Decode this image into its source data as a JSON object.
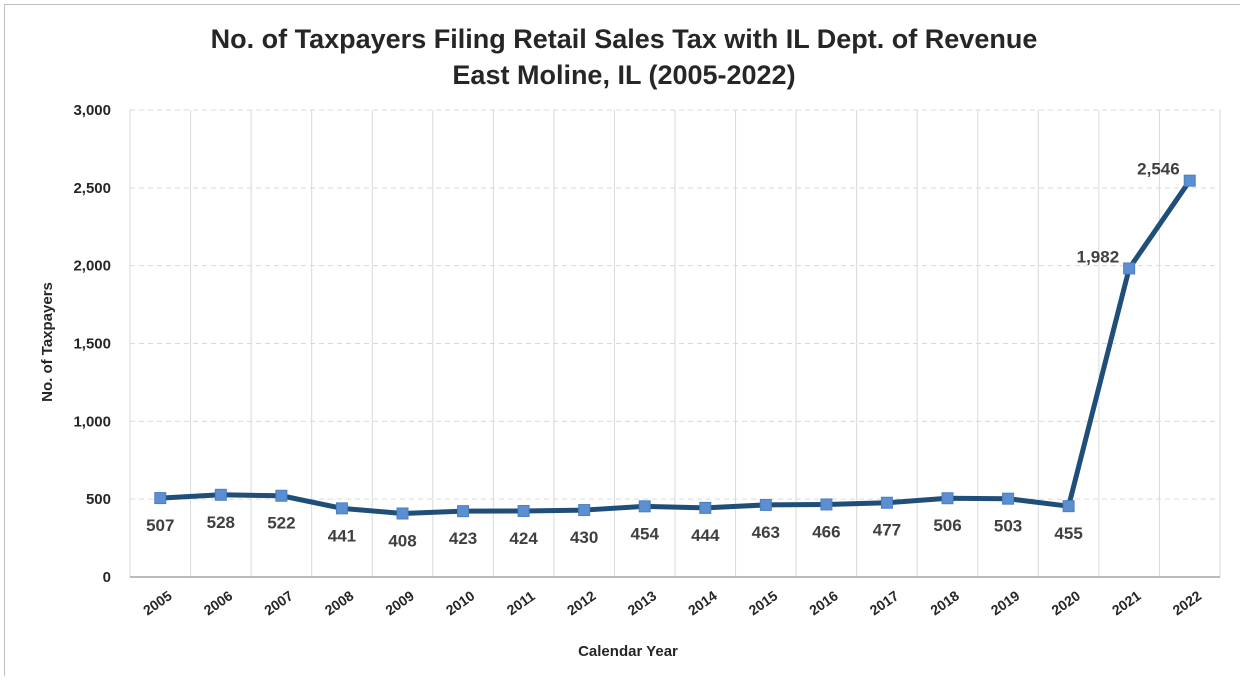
{
  "chart_data": {
    "type": "line",
    "title": "No. of Taxpayers Filing Retail Sales Tax with IL Dept. of Revenue",
    "subtitle": "East Moline, IL (2005-2022)",
    "xlabel": "Calendar Year",
    "ylabel": "No. of Taxpayers",
    "categories": [
      "2005",
      "2006",
      "2007",
      "2008",
      "2009",
      "2010",
      "2011",
      "2012",
      "2013",
      "2014",
      "2015",
      "2016",
      "2017",
      "2018",
      "2019",
      "2020",
      "2021",
      "2022"
    ],
    "series": [
      {
        "values": [
          507,
          528,
          522,
          441,
          408,
          423,
          424,
          430,
          454,
          444,
          463,
          466,
          477,
          506,
          503,
          455,
          1982,
          2546
        ]
      }
    ],
    "data_labels": [
      "507",
      "528",
      "522",
      "441",
      "408",
      "423",
      "424",
      "430",
      "454",
      "444",
      "463",
      "466",
      "477",
      "506",
      "503",
      "455",
      "1,982",
      "2,546"
    ],
    "yticks": [
      "0",
      "500",
      "1,000",
      "1,500",
      "2,000",
      "2,500",
      "3,000"
    ],
    "ylim": [
      0,
      3000
    ],
    "grid": true,
    "colors": {
      "line": "#1f4e79",
      "marker": "#5b8fd1",
      "grid": "#d9d9d9"
    }
  }
}
